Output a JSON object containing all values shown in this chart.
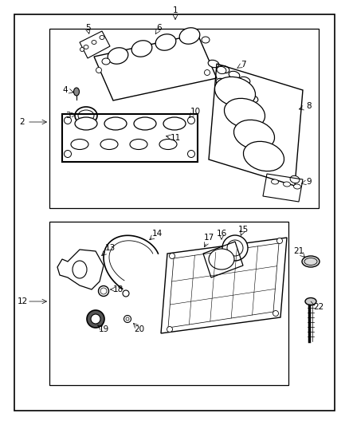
{
  "bg_color": "#ffffff",
  "line_color": "#000000",
  "label_font_size": 7.5
}
